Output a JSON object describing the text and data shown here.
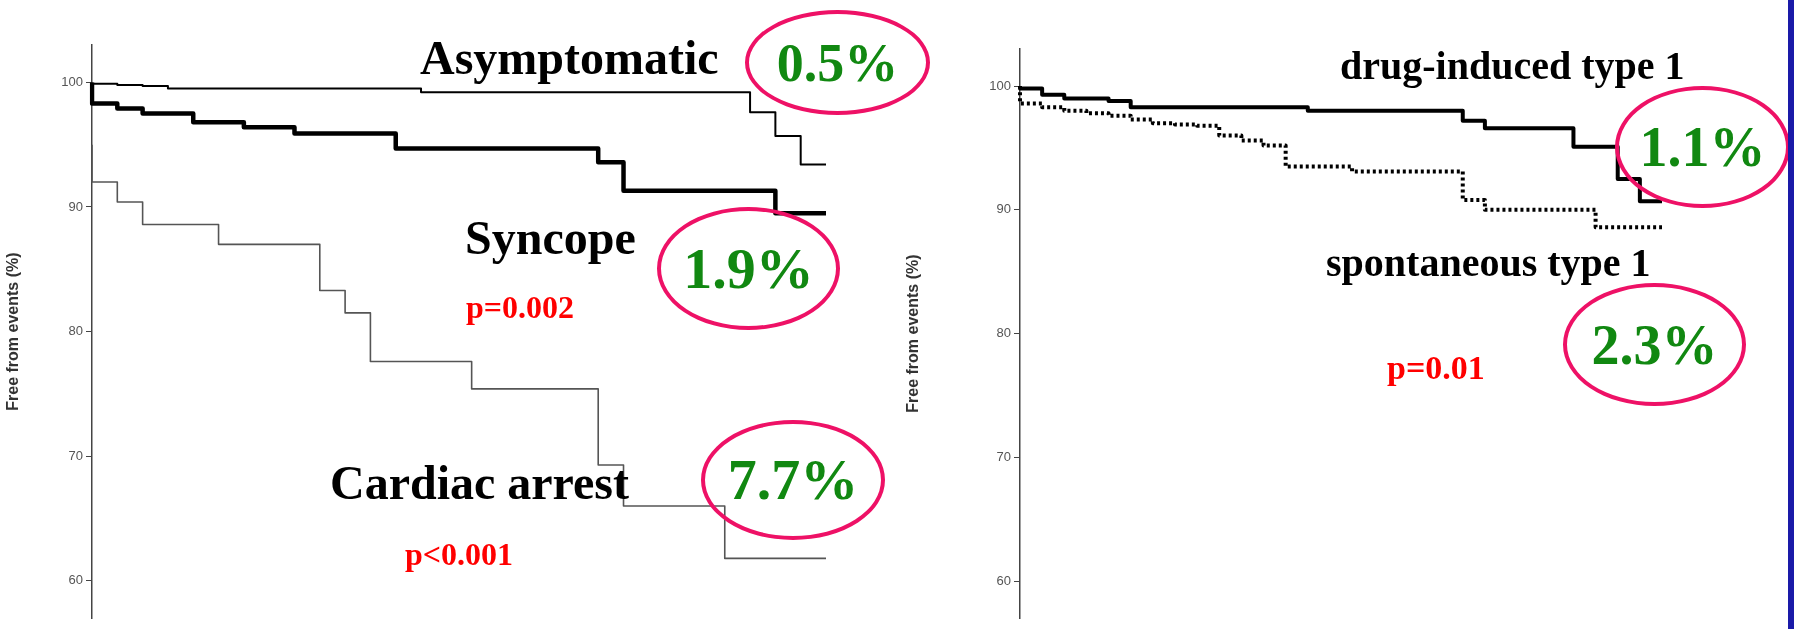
{
  "chart_data": [
    {
      "type": "step",
      "ylabel": "Free from events (%)",
      "categories": [
        null,
        null,
        null,
        null,
        null,
        null,
        null,
        null,
        null,
        null,
        null,
        null,
        null,
        null,
        null,
        null,
        null,
        null,
        null,
        null,
        null,
        null,
        null,
        null,
        null,
        null,
        null,
        null,
        null,
        null
      ],
      "series": [
        {
          "name": "Asymptomatic",
          "color": "#000000",
          "values": [
            100,
            99.9,
            99.8,
            99.7,
            99.5,
            99.5,
            99.5,
            99.5,
            99.5,
            99.5,
            99.5,
            99.5,
            99.5,
            99.5,
            99.2,
            99.2,
            99.2,
            99.2,
            99.2,
            99.2,
            99.2,
            99.2,
            99.2,
            99.2,
            99.2,
            99.2,
            99.2,
            97.6,
            95.7,
            93.4
          ]
        },
        {
          "name": "Syncope",
          "color": "#000000",
          "values": [
            100,
            98.3,
            97.9,
            97.5,
            97.5,
            96.8,
            96.8,
            96.4,
            96.4,
            95.9,
            95.9,
            95.9,
            95.9,
            94.7,
            94.7,
            94.7,
            94.7,
            94.7,
            94.7,
            94.7,
            94.7,
            93.6,
            91.3,
            91.3,
            91.3,
            91.3,
            91.3,
            91.3,
            89.5,
            89.5
          ]
        },
        {
          "name": "Cardiac arrest",
          "color": "#555555",
          "values": [
            95,
            92,
            90.4,
            88.6,
            88.6,
            88.6,
            87,
            87,
            87,
            87,
            83.3,
            81.5,
            77.6,
            77.6,
            77.6,
            77.6,
            75.4,
            75.4,
            75.4,
            75.4,
            75.4,
            69.3,
            66,
            66,
            66,
            66,
            61.8,
            61.8,
            61.8,
            61.8
          ]
        }
      ],
      "ylim": [
        57,
        103
      ],
      "yticks": [
        60,
        70,
        80,
        90,
        100
      ],
      "grid": false,
      "legend": false,
      "marker": "none",
      "tick_labels": "y",
      "annotations": [
        "0.5%",
        "1.9%",
        "p=0.002",
        "7.7%",
        "p<0.001"
      ]
    },
    {
      "type": "step",
      "ylabel": "Free from events (%)",
      "categories": [
        null,
        null,
        null,
        null,
        null,
        null,
        null,
        null,
        null,
        null,
        null,
        null,
        null,
        null,
        null,
        null,
        null,
        null,
        null,
        null,
        null,
        null,
        null,
        null,
        null,
        null,
        null,
        null,
        null,
        null
      ],
      "series": [
        {
          "name": "drug-induced type 1",
          "color": "#000000",
          "line_style": "solid",
          "values": [
            100,
            99.8,
            99.3,
            99,
            99,
            98.8,
            98.3,
            98.3,
            98.3,
            98.3,
            98.3,
            98.3,
            98.3,
            98.3,
            98,
            98,
            98,
            98,
            98,
            98,
            98,
            97.2,
            96.6,
            96.6,
            96.6,
            96.6,
            95.1,
            95.1,
            92.5,
            90.7
          ]
        },
        {
          "name": "spontaneous type 1",
          "color": "#000000",
          "line_style": "dotted",
          "values": [
            99.5,
            98.6,
            98.3,
            98,
            97.8,
            97.6,
            97.3,
            97,
            96.9,
            96.8,
            96,
            95.6,
            95.2,
            93.5,
            93.5,
            93.5,
            93.1,
            93.1,
            93.1,
            93.1,
            93.1,
            90.8,
            90,
            90,
            90,
            90,
            90,
            88.6,
            88.6,
            88.6
          ]
        }
      ],
      "ylim": [
        57,
        103
      ],
      "yticks": [
        60,
        70,
        80,
        90,
        100
      ],
      "grid": false,
      "legend": false,
      "marker": "none",
      "tick_labels": "y",
      "annotations": [
        "1.1%",
        "2.3%",
        "p=0.01"
      ]
    }
  ]
}
